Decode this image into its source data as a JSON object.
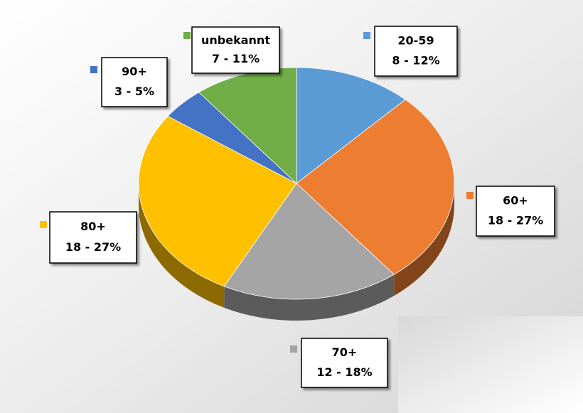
{
  "chart_data": {
    "type": "pie3d",
    "categories": [
      "20-59",
      "60+",
      "70+",
      "80+",
      "90+",
      "unbekannt"
    ],
    "values": [
      8,
      18,
      12,
      18,
      3,
      7
    ],
    "value_labels": [
      "8 - 12%",
      "18 - 27%",
      "12 - 18%",
      "18 - 27%",
      "3 - 5%",
      "7 - 11%"
    ],
    "colors": [
      "#5b9bd5",
      "#ed7d31",
      "#a5a5a5",
      "#ffc000",
      "#4472c4",
      "#70ad47"
    ]
  }
}
